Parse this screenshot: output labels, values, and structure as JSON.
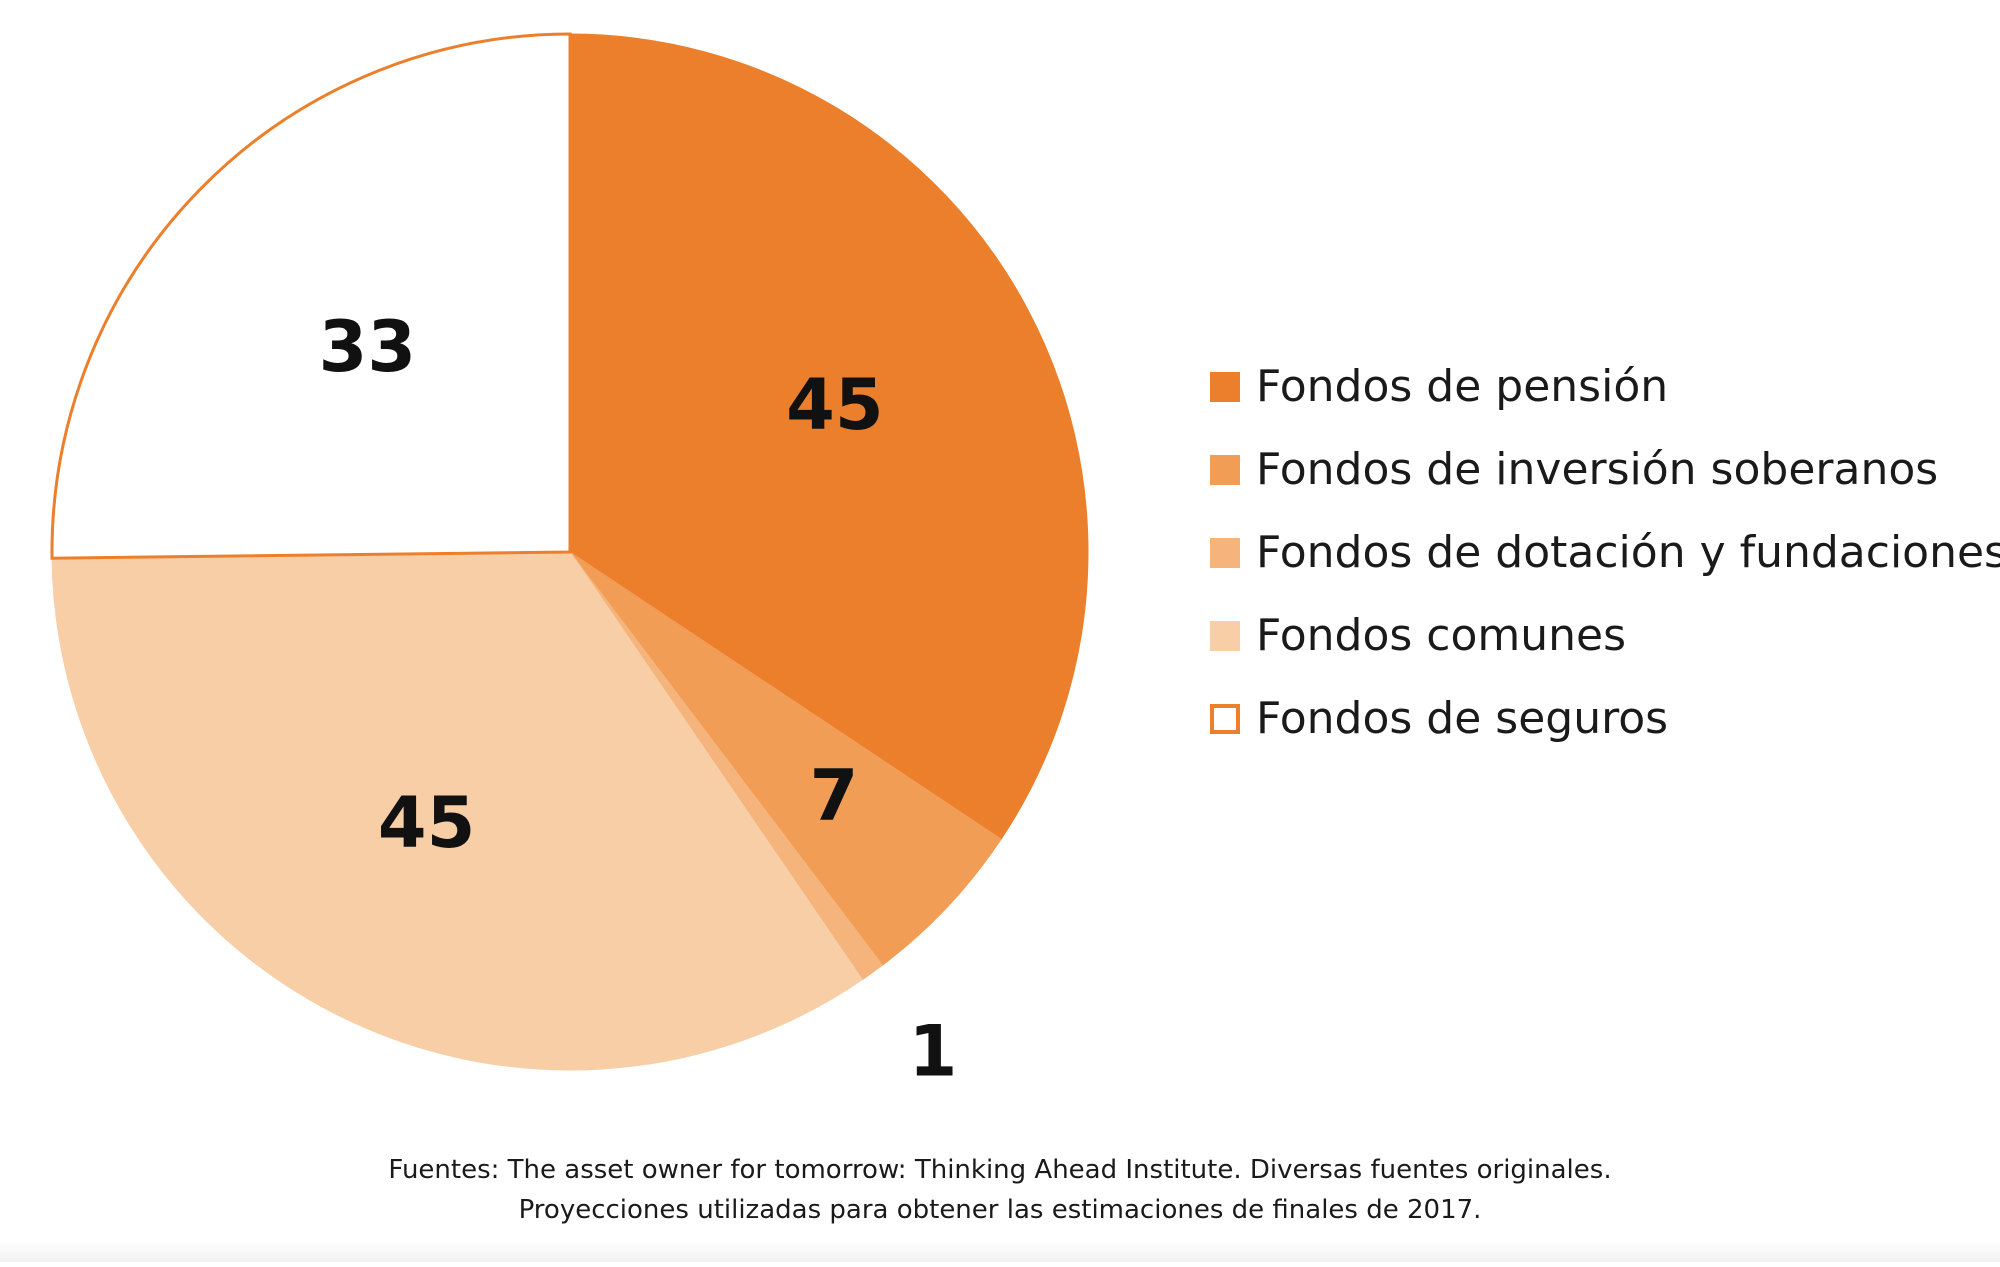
{
  "chart_data": {
    "type": "pie",
    "slices": [
      {
        "label": "Fondos de pensión",
        "value": 45,
        "display": "45",
        "color": "#ec7f2b"
      },
      {
        "label": "Fondos de inversión soberanos",
        "value": 7,
        "display": "7",
        "color": "#f29d55"
      },
      {
        "label": "Fondos de dotación y fundaciones",
        "value": 1,
        "display": "1",
        "color": "#f5b47c"
      },
      {
        "label": "Fondos comunes",
        "value": 45,
        "display": "45",
        "color": "#f8cea7"
      },
      {
        "label": "Fondos de seguros",
        "value": 33,
        "display": "33",
        "color": "#ffffff",
        "outline": "#ec7f2b"
      }
    ],
    "legend_position": "right"
  },
  "footnote": {
    "line1": "Fuentes: The asset owner for tomorrow: Thinking Ahead Institute. Diversas fuentes originales.",
    "line2": "Proyecciones utilizadas para obtener las estimaciones de finales de 2017."
  }
}
